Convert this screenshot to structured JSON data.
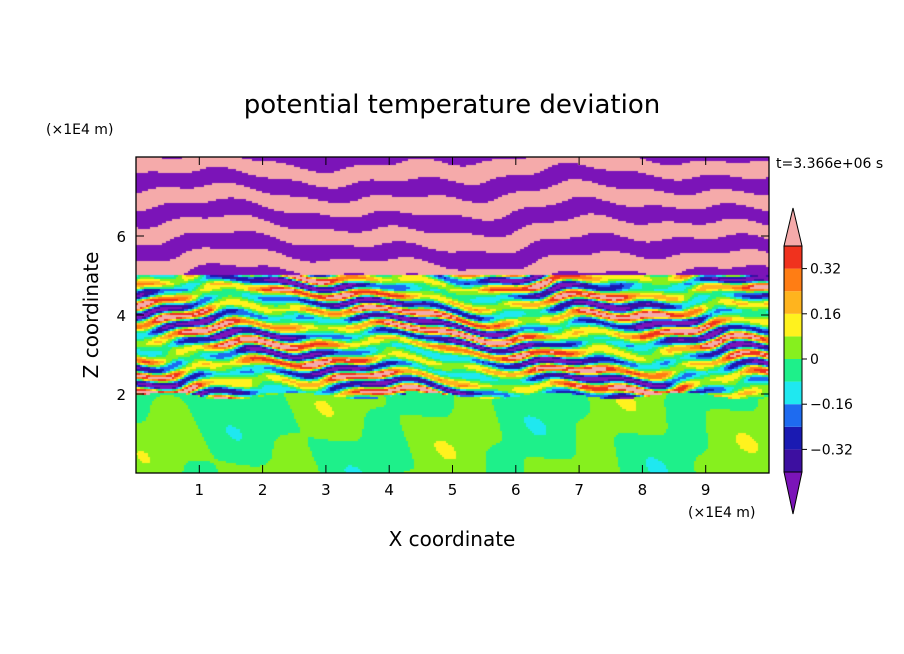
{
  "chart_data": {
    "type": "heatmap",
    "title": "potential temperature deviation",
    "time_label": "t=3.366e+06 s",
    "xlabel": "X coordinate",
    "ylabel": "Z coordinate",
    "x_unit": "(×1E4 m)",
    "y_unit": "(×1E4 m)",
    "xlim": [
      0,
      10
    ],
    "ylim": [
      0,
      8
    ],
    "x_ticks": [
      1,
      2,
      3,
      4,
      5,
      6,
      7,
      8,
      9
    ],
    "y_ticks": [
      2,
      4,
      6
    ],
    "colorbar": {
      "levels": [
        -0.4,
        -0.32,
        -0.24,
        -0.16,
        -0.08,
        0,
        0.08,
        0.16,
        0.24,
        0.32,
        0.4
      ],
      "tick_labels": [
        "0.32",
        "0.16",
        "0",
        "−0.16",
        "−0.32"
      ],
      "tick_values": [
        0.32,
        0.16,
        0,
        -0.16,
        -0.32
      ],
      "colors_low_to_high": [
        "#7b14b8",
        "#3d0fa0",
        "#1a1ab2",
        "#1e6bf0",
        "#1fe8f0",
        "#1ef08a",
        "#86f01e",
        "#fff21e",
        "#ffb41e",
        "#ff7d14",
        "#f0321e",
        "#f5aaaa"
      ],
      "under_color": "#7b14b8",
      "over_color": "#f5aaaa"
    },
    "field_description_layers": {
      "lower_layer_z": [
        0,
        2
      ],
      "lower_layer_value_range": [
        -0.08,
        0.08
      ],
      "mixing_layer_z": [
        2,
        5
      ],
      "upper_layer_z": [
        5,
        8
      ],
      "upper_layer_values": [
        -0.4,
        0.4
      ]
    }
  }
}
